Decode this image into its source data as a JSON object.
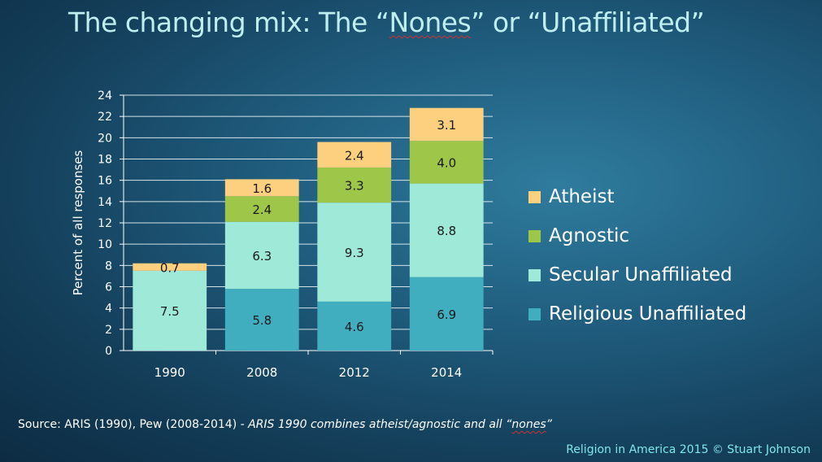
{
  "title": {
    "part1": "The changing mix: The “",
    "part2": "Nones",
    "part3": "” or “Unaffiliated”"
  },
  "chart_data": {
    "type": "bar",
    "stacked": true,
    "categories": [
      "1990",
      "2008",
      "2012",
      "2014"
    ],
    "ylabel": "Percent of all responses",
    "xlabel": "",
    "ylim": [
      0,
      24
    ],
    "yticks": [
      0,
      2,
      4,
      6,
      8,
      10,
      12,
      14,
      16,
      18,
      20,
      22,
      24
    ],
    "grid": true,
    "legend_position": "right",
    "series": [
      {
        "name": "Religious Unaffiliated",
        "color": "#41aec0",
        "values": [
          null,
          5.8,
          4.6,
          6.9
        ]
      },
      {
        "name": "Secular Unaffiliated",
        "color": "#9ee9d8",
        "values": [
          7.5,
          6.3,
          9.3,
          8.8
        ]
      },
      {
        "name": "Agnostic",
        "color": "#9ec74a",
        "values": [
          null,
          2.4,
          3.3,
          4.0
        ]
      },
      {
        "name": "Atheist",
        "color": "#fcd07e",
        "values": [
          0.7,
          1.6,
          2.4,
          3.1
        ]
      }
    ]
  },
  "source": {
    "text": "Source: ARIS (1990), Pew (2008-2014)",
    "note_part1": "  - ARIS 1990 combines atheist/agnostic and all “",
    "note_part2": "nones",
    "note_part3": "”"
  },
  "credit": "Religion in America 2015 © Stuart Johnson"
}
